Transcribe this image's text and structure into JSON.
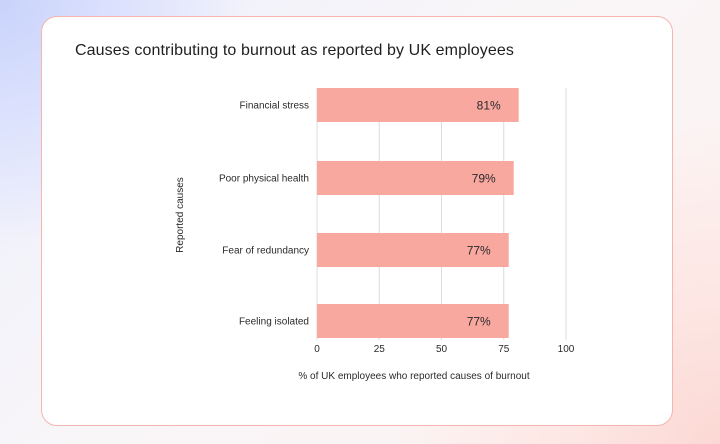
{
  "chart_data": {
    "type": "bar",
    "orientation": "horizontal",
    "title": "Causes contributing to burnout as reported by UK employees",
    "categories": [
      "Financial stress",
      "Poor physical health",
      "Fear of redundancy",
      "Feeling isolated"
    ],
    "values": [
      81,
      79,
      77,
      77
    ],
    "value_labels": [
      "81%",
      "79%",
      "77%",
      "77%"
    ],
    "xlabel": "% of UK employees who reported causes of burnout",
    "ylabel": "Reported  causes",
    "xlim": [
      0,
      100
    ],
    "xticks": [
      0,
      25,
      50,
      75,
      100
    ],
    "grid": true,
    "bar_color": "#f9a8a0"
  }
}
